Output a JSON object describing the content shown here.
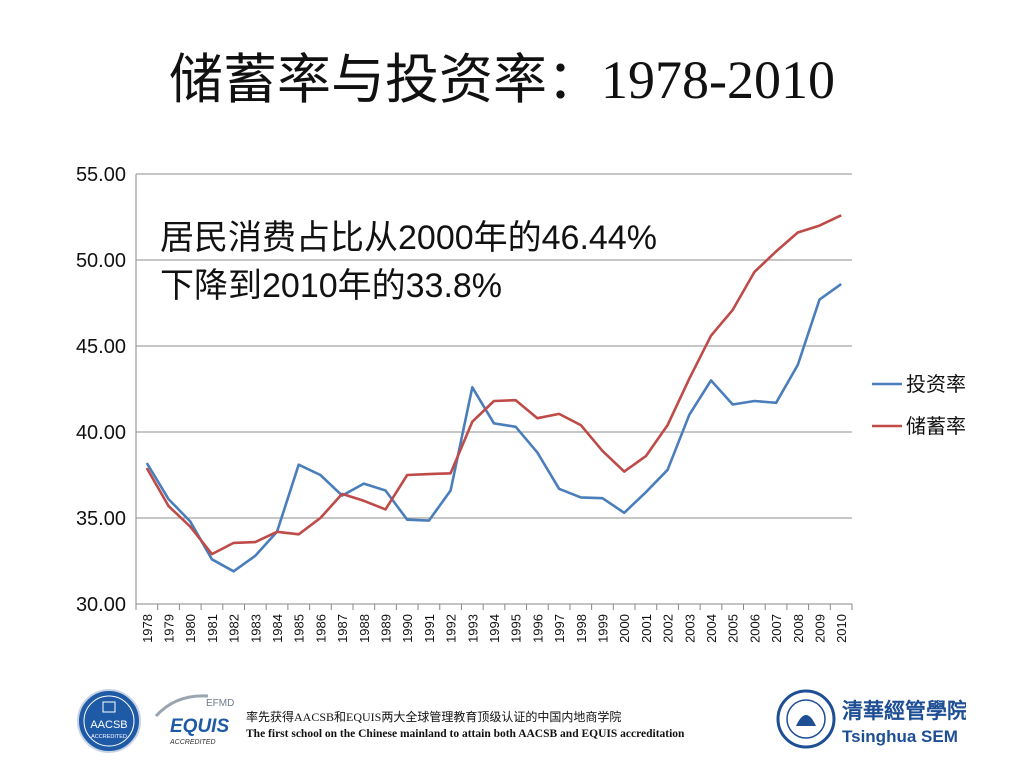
{
  "title": "储蓄率与投资率：1978-2010",
  "annotation": {
    "line1": "居民消费占比从2000年的46.44%",
    "line2": "下降到2010年的33.8%"
  },
  "chart_data": {
    "type": "line",
    "x": [
      "1978",
      "1979",
      "1980",
      "1981",
      "1982",
      "1983",
      "1984",
      "1985",
      "1986",
      "1987",
      "1988",
      "1989",
      "1990",
      "1991",
      "1992",
      "1993",
      "1994",
      "1995",
      "1996",
      "1997",
      "1998",
      "1999",
      "2000",
      "2001",
      "2002",
      "2003",
      "2004",
      "2005",
      "2006",
      "2007",
      "2008",
      "2009",
      "2010"
    ],
    "ylim": [
      30,
      55
    ],
    "yticks": [
      "30.00",
      "35.00",
      "40.00",
      "45.00",
      "50.00",
      "55.00"
    ],
    "ytick_values": [
      30,
      35,
      40,
      45,
      50,
      55
    ],
    "grid": true,
    "legend_position": "right",
    "series": [
      {
        "name": "投资率",
        "color": "#4a7ebb",
        "values": [
          38.2,
          36.1,
          34.8,
          32.6,
          31.9,
          32.8,
          34.2,
          38.1,
          37.5,
          36.3,
          37.0,
          36.6,
          34.9,
          34.85,
          36.6,
          42.6,
          40.5,
          40.3,
          38.8,
          36.7,
          36.2,
          36.15,
          35.3,
          36.5,
          37.8,
          41.0,
          43.0,
          41.6,
          41.8,
          41.7,
          43.9,
          47.7,
          48.6
        ]
      },
      {
        "name": "储蓄率",
        "color": "#be4b48",
        "values": [
          37.9,
          35.7,
          34.5,
          32.9,
          33.55,
          33.6,
          34.2,
          34.05,
          35.0,
          36.4,
          36.0,
          35.5,
          37.5,
          37.55,
          37.6,
          40.6,
          41.8,
          41.85,
          40.8,
          41.05,
          40.4,
          38.9,
          37.7,
          38.6,
          40.4,
          43.1,
          45.6,
          47.1,
          49.3,
          50.5,
          51.6,
          52.0,
          52.6
        ]
      }
    ]
  },
  "footer": {
    "line1": "率先获得AACSB和EQUIS两大全球管理教育顶级认证的中国内地商学院",
    "line2": "The first school on the Chinese  mainland to attain both AACSB and EQUIS accreditation",
    "aacsb_label": "AACSB",
    "aacsb_sub": "ACCREDITED",
    "efmd_label": "EFMD",
    "equis_label": "EQUIS",
    "equis_sub": "ACCREDITED",
    "tsinghua_cn": "清華經管學院",
    "tsinghua_en": "Tsinghua SEM"
  },
  "colors": {
    "investment": "#4a7ebb",
    "savings": "#be4b48",
    "aacsb_blue": "#1f5aa6",
    "tsinghua_blue": "#1e4f94",
    "equis_grey": "#6d7b8a"
  }
}
